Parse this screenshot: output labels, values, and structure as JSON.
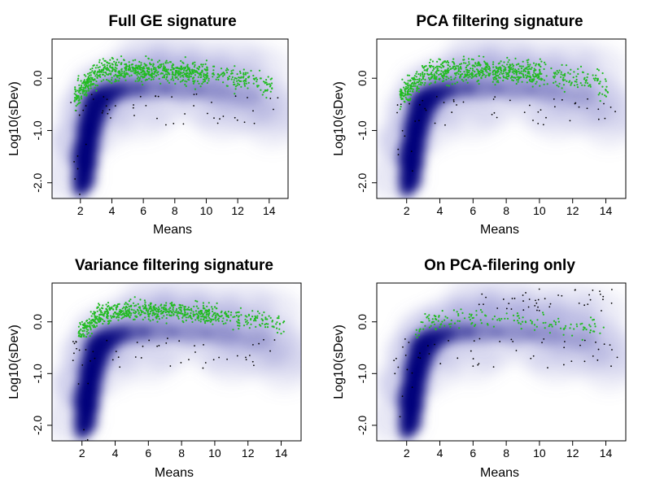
{
  "figure_title": "",
  "colors": {
    "density": "#00007a",
    "highlight_points": "#22bb22",
    "outlier_points": "#000000",
    "frame": "#000000",
    "background": "#ffffff"
  },
  "chart_data": [
    {
      "type": "scatter",
      "title": "Full GE signature",
      "xlabel": "Means",
      "ylabel": "Log10(sDev)",
      "xlim": [
        0.2,
        15.2
      ],
      "ylim": [
        -2.3,
        0.75
      ],
      "xticks": [
        2,
        4,
        6,
        8,
        10,
        12,
        14
      ],
      "xtick_labels": [
        "2",
        "4",
        "6",
        "8",
        "10",
        "12",
        "14"
      ],
      "yticks": [
        -2,
        -1,
        0
      ],
      "ytick_labels": [
        "-2.0",
        "-1.0",
        "0.0"
      ],
      "background": "smoothed 2D density of all genes (mean vs log10 sDev)",
      "highlight": {
        "description": "signature genes",
        "approx_count": 1400,
        "x_range": [
          1.6,
          14.2
        ],
        "y_center_at_x6": 0.15,
        "y_spread": 0.22
      },
      "outliers": "black dots along lower edge, x 1.2 to 14.8, y -0.9 to -0.3"
    },
    {
      "type": "scatter",
      "title": "PCA filtering signature",
      "xlabel": "Means",
      "ylabel": "Log10(sDev)",
      "xlim": [
        0.2,
        15.2
      ],
      "ylim": [
        -2.3,
        0.75
      ],
      "xticks": [
        2,
        4,
        6,
        8,
        10,
        12,
        14
      ],
      "xtick_labels": [
        "2",
        "4",
        "6",
        "8",
        "10",
        "12",
        "14"
      ],
      "yticks": [
        -2,
        -1,
        0
      ],
      "ytick_labels": [
        "-2.0",
        "-1.0",
        "0.0"
      ],
      "background": "smoothed 2D density of all genes (mean vs log10 sDev)",
      "highlight": {
        "description": "signature genes",
        "approx_count": 1300,
        "x_range": [
          1.6,
          14.2
        ],
        "y_center_at_x6": 0.15,
        "y_spread": 0.22
      },
      "outliers": "black dots along lower edge, x 1.2 to 14.8, y -0.9 to -0.3"
    },
    {
      "type": "scatter",
      "title": "Variance filtering signature",
      "xlabel": "Means",
      "ylabel": "Log10(sDev)",
      "xlim": [
        0.2,
        15.2
      ],
      "ylim": [
        -2.3,
        0.75
      ],
      "xticks": [
        2,
        4,
        6,
        8,
        10,
        12,
        14
      ],
      "xtick_labels": [
        "2",
        "4",
        "6",
        "8",
        "10",
        "12",
        "14"
      ],
      "yticks": [
        -2,
        -1,
        0
      ],
      "ytick_labels": [
        "-2.0",
        "-1.0",
        "0.0"
      ],
      "background": "smoothed 2D density of all genes (mean vs log10 sDev)",
      "highlight": {
        "description": "signature genes (sDev above threshold ~ -0.3)",
        "approx_count": 1200,
        "x_range": [
          1.8,
          14.2
        ],
        "y_center_at_x6": 0.2,
        "y_spread": 0.18
      },
      "outliers": "black dots along lower edge, x 1.2 to 14.8, y -0.9 to -0.3"
    },
    {
      "type": "scatter",
      "title": "On PCA-filering only",
      "xlabel": "Means",
      "ylabel": "Log10(sDev)",
      "xlim": [
        0.2,
        15.2
      ],
      "ylim": [
        -2.3,
        0.75
      ],
      "xticks": [
        2,
        4,
        6,
        8,
        10,
        12,
        14
      ],
      "xtick_labels": [
        "2",
        "4",
        "6",
        "8",
        "10",
        "12",
        "14"
      ],
      "yticks": [
        -2,
        -1,
        0
      ],
      "ytick_labels": [
        "-2.0",
        "-1.0",
        "0.0"
      ],
      "background": "smoothed 2D density of all genes (mean vs log10 sDev)",
      "highlight": {
        "description": "genes selected by PCA filtering only",
        "approx_count": 160,
        "x_range": [
          2.5,
          14.0
        ],
        "y_center_at_x6": 0.05,
        "y_spread": 0.2
      },
      "outliers": "black dots along lower edge and upper rim, x 1.2 to 14.8"
    }
  ]
}
